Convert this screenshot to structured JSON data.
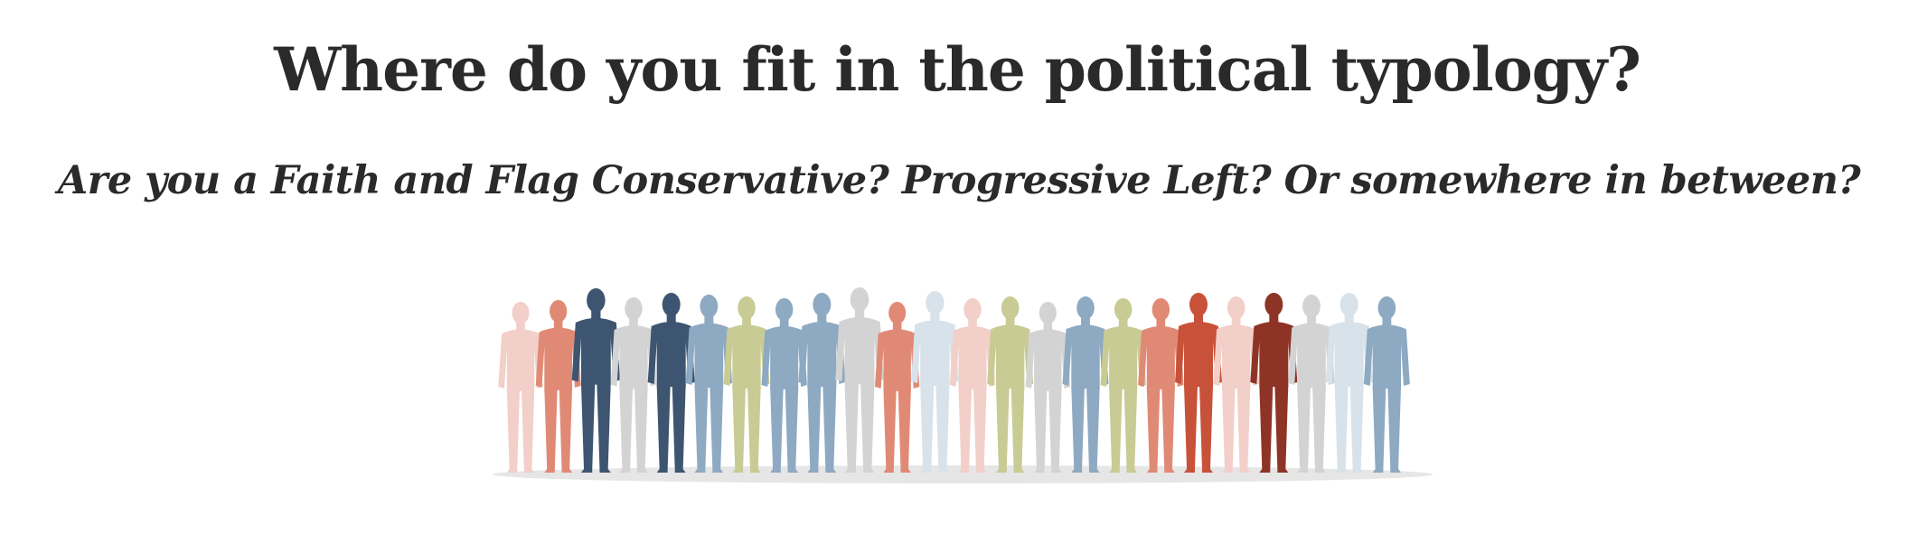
{
  "header": {
    "title": "Where do you fit in the political typology?",
    "subtitle": "Are you a Faith and Flag Conservative? Progressive Left? Or somewhere in between?"
  },
  "illustration": {
    "icon": "crowd-silhouettes-icon",
    "palette": {
      "light_red": "#f2cfc9",
      "salmon": "#e08a76",
      "dark_blue": "#3d5570",
      "blue": "#8ea9c2",
      "light_gray": "#d3d3d3",
      "olive": "#c8cb93",
      "red": "#c8513a",
      "dark_red": "#8e3426",
      "pale_blue": "#d8e2ea",
      "shadow": "#e6e6e6"
    },
    "figures": [
      "light_red",
      "salmon",
      "dark_blue",
      "light_gray",
      "dark_blue",
      "blue",
      "olive",
      "blue",
      "blue",
      "light_gray",
      "salmon",
      "pale_blue",
      "light_red",
      "olive",
      "light_gray",
      "blue",
      "olive",
      "salmon",
      "red",
      "light_red",
      "dark_red",
      "light_gray",
      "pale_blue",
      "blue"
    ]
  }
}
